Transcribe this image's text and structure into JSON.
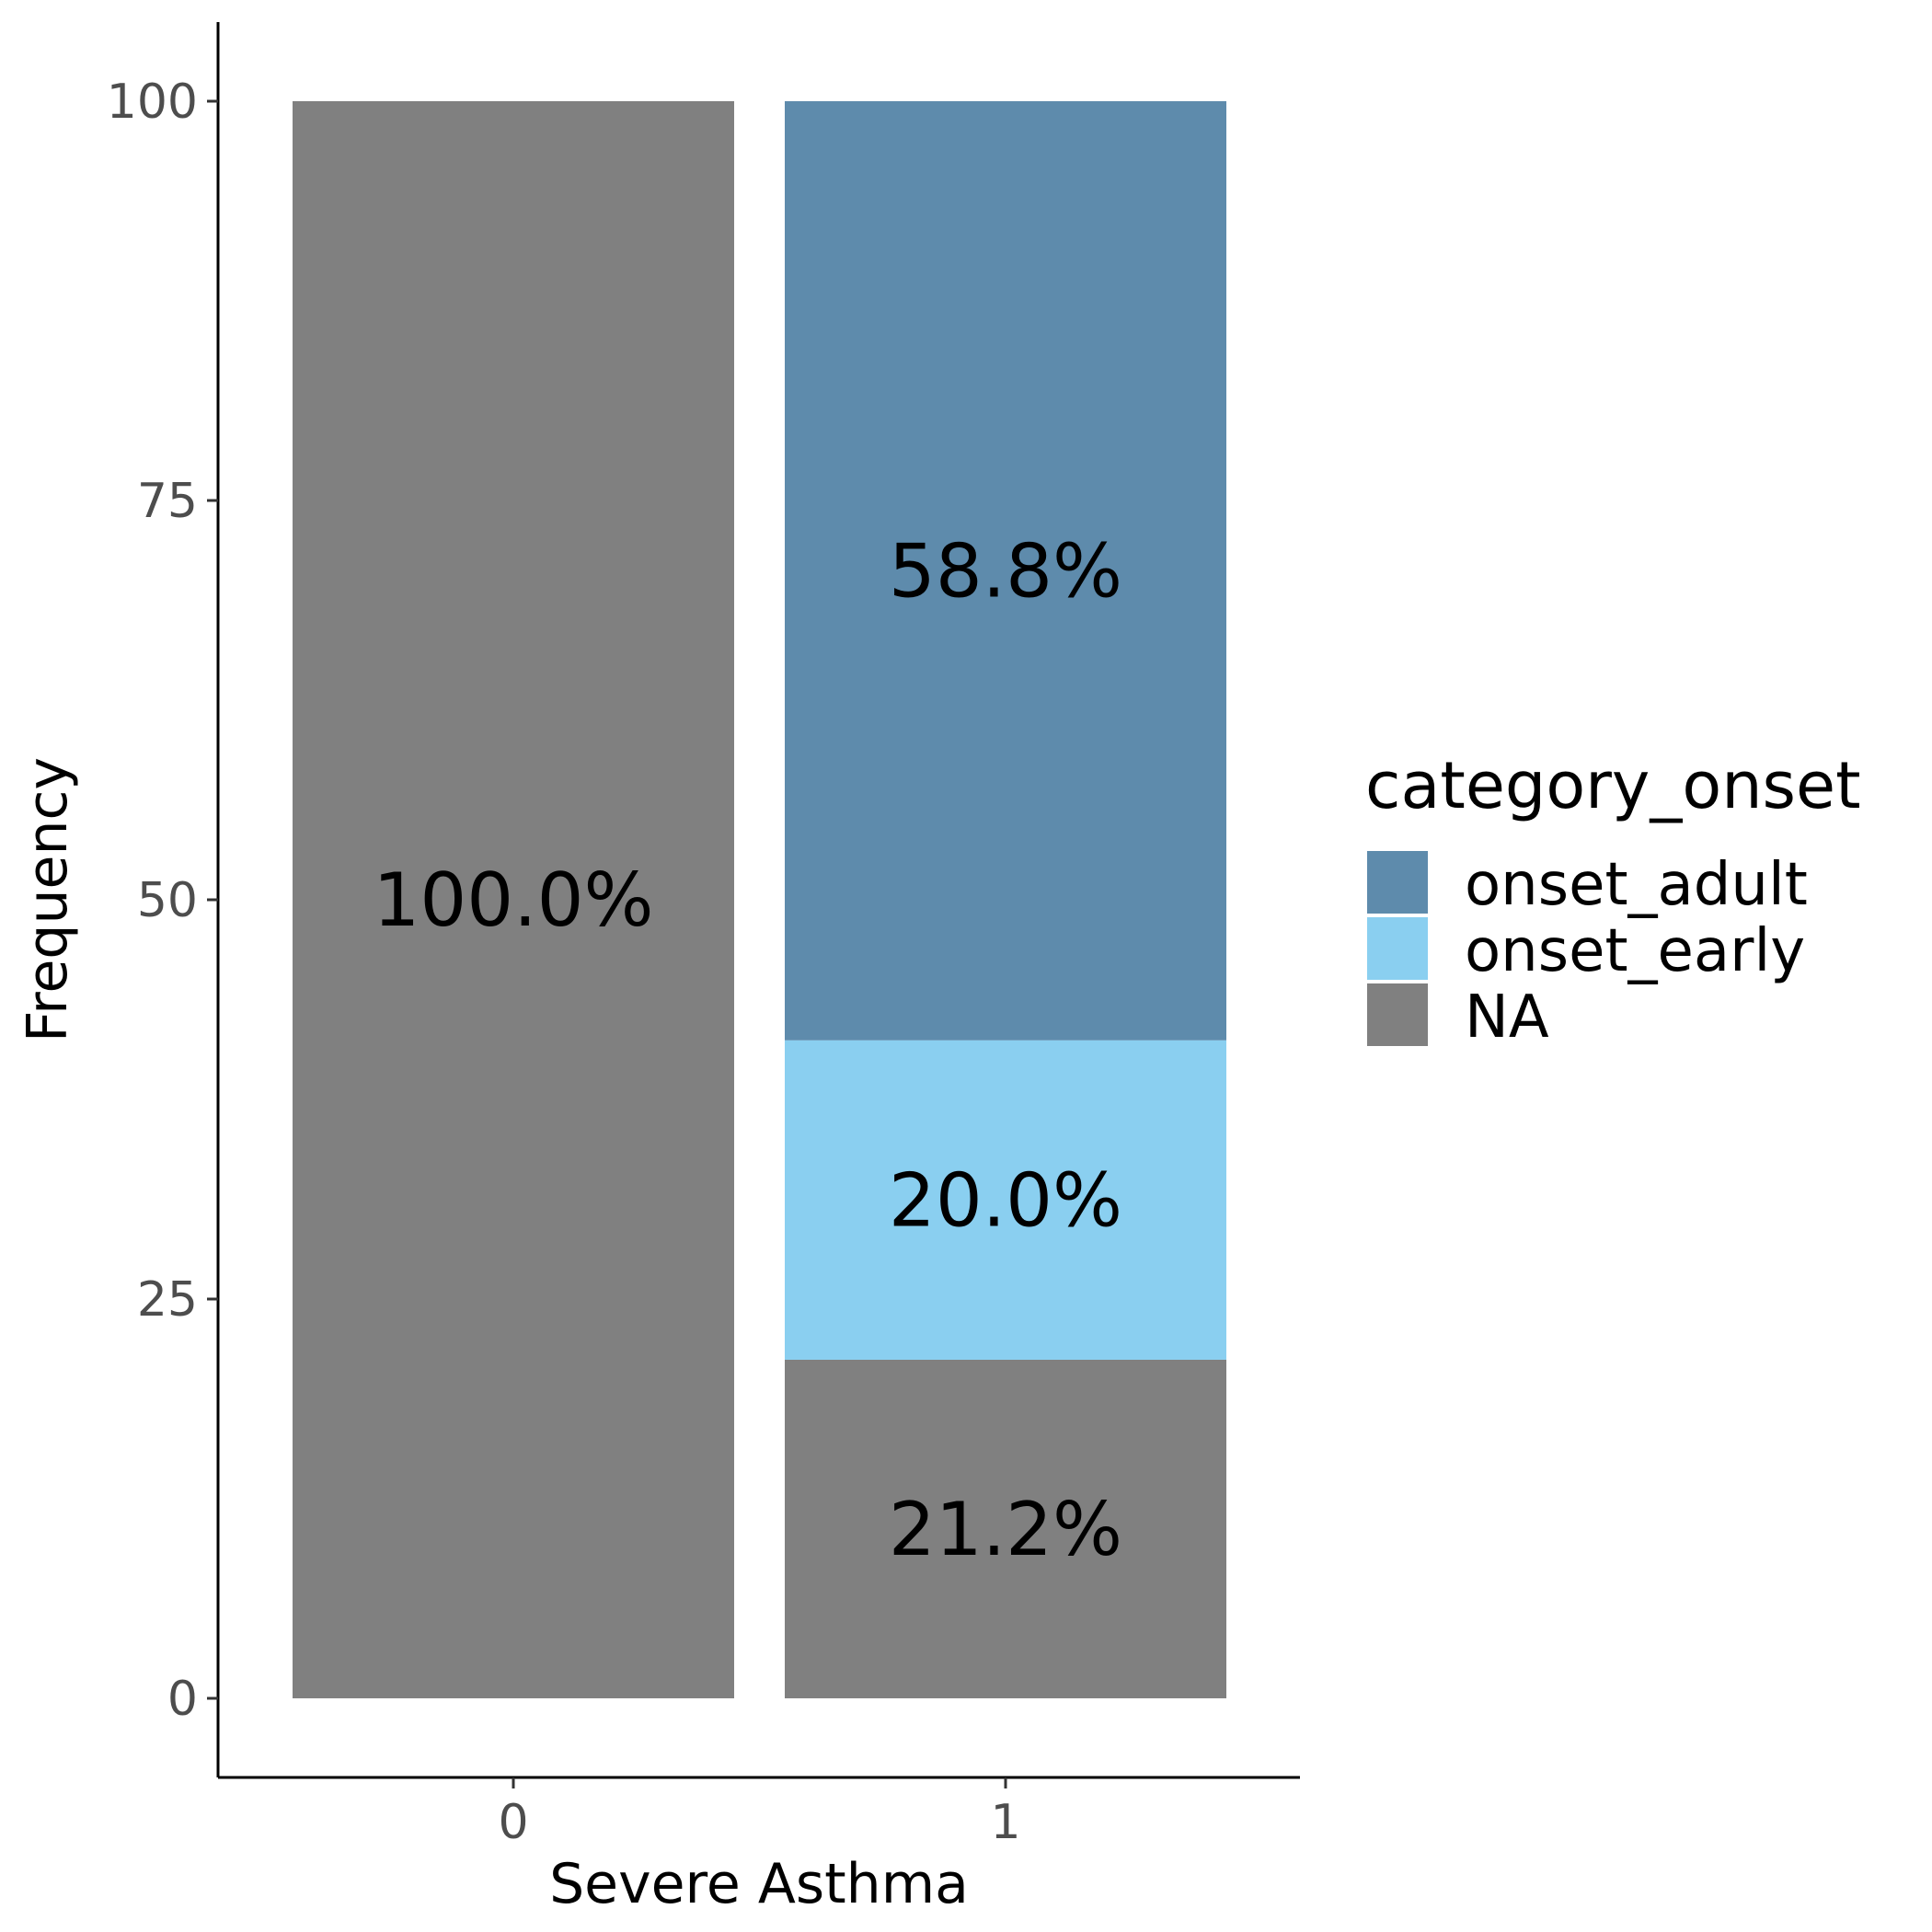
{
  "chart_data": {
    "type": "bar",
    "stacked": true,
    "xlabel": "Severe Asthma",
    "ylabel": "Frequency",
    "categories": [
      "0",
      "1"
    ],
    "ylim": [
      -5,
      105
    ],
    "yticks": [
      0,
      25,
      50,
      75,
      100
    ],
    "grid": false,
    "legend": {
      "title": "category_onset",
      "position": "right",
      "entries": [
        "onset_adult",
        "onset_early",
        "NA"
      ]
    },
    "series": [
      {
        "name": "NA",
        "values": [
          100.0,
          21.2
        ],
        "labels": [
          "100.0%",
          "21.2%"
        ],
        "color": "#808080"
      },
      {
        "name": "onset_early",
        "values": [
          0,
          20.0
        ],
        "labels": [
          "",
          "20.0%"
        ],
        "color": "#8ACFF0"
      },
      {
        "name": "onset_adult",
        "values": [
          0,
          58.8
        ],
        "labels": [
          "",
          "58.8%"
        ],
        "color": "#5E8BAC"
      }
    ]
  }
}
